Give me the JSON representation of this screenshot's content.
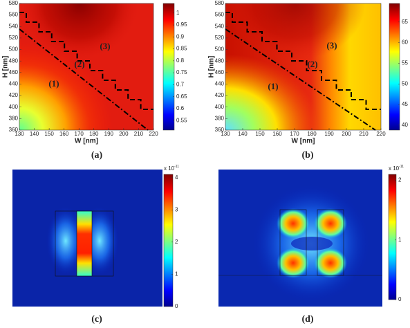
{
  "chart_data": [
    {
      "type": "heatmap",
      "caption": "(a)",
      "xlabel": "W [nm]",
      "ylabel": "H [nm]",
      "xlim": [
        130,
        220
      ],
      "xticks": [
        130,
        140,
        150,
        160,
        170,
        180,
        190,
        200,
        210,
        220
      ],
      "ylim": [
        360,
        580
      ],
      "yticks": [
        360,
        380,
        400,
        420,
        440,
        460,
        480,
        500,
        520,
        540,
        560,
        580
      ],
      "annotations": [
        "(1)",
        "(2)",
        "(3)"
      ],
      "colorbar": {
        "lim": [
          0.51,
          1.04
        ],
        "ticks": [
          0.55,
          0.6,
          0.65,
          0.7,
          0.75,
          0.8,
          0.85,
          0.9,
          0.95,
          1
        ]
      }
    },
    {
      "type": "heatmap",
      "caption": "(b)",
      "xlabel": "W [nm]",
      "ylabel": "H [nm]",
      "xlim": [
        130,
        220
      ],
      "xticks": [
        130,
        140,
        150,
        160,
        170,
        180,
        190,
        200,
        210,
        220
      ],
      "ylim": [
        360,
        580
      ],
      "yticks": [
        360,
        380,
        400,
        420,
        440,
        460,
        480,
        500,
        520,
        540,
        560,
        580
      ],
      "annotations": [
        "(1)",
        "(2)",
        "(3)"
      ],
      "colorbar": {
        "lim": [
          38.8,
          69.5
        ],
        "ticks": [
          40,
          45,
          50,
          55,
          60,
          65
        ]
      }
    },
    {
      "type": "field",
      "caption": "(c)",
      "colorbar": {
        "lim": [
          0,
          4.1
        ],
        "ticks": [
          0,
          1,
          2,
          3,
          4
        ],
        "multiplier": "x 10",
        "exponent": "-11"
      }
    },
    {
      "type": "field",
      "caption": "(d)",
      "colorbar": {
        "lim": [
          0,
          2.1
        ],
        "ticks": [
          0,
          1,
          2
        ],
        "multiplier": "x 10",
        "exponent": "-11"
      }
    }
  ]
}
